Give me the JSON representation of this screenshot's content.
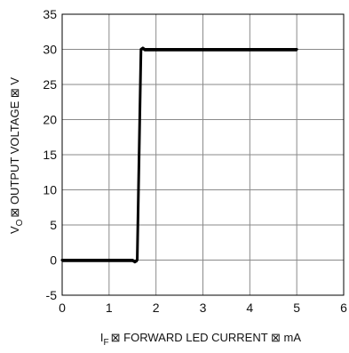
{
  "chart_data": {
    "type": "line",
    "title": "",
    "xlabel": {
      "symbol": "I",
      "subscript": "F",
      "text": "⊠ FORWARD LED CURRENT ⊠ mA"
    },
    "ylabel": {
      "symbol": "V",
      "subscript": "O",
      "text": "⊠ OUTPUT VOLTAGE ⊠ V"
    },
    "xlim": [
      0,
      6
    ],
    "ylim": [
      -5,
      35
    ],
    "xticks": [
      0,
      1,
      2,
      3,
      4,
      5,
      6
    ],
    "yticks": [
      -5,
      0,
      5,
      10,
      15,
      20,
      25,
      30,
      35
    ],
    "xtick_labels": [
      "0",
      "1",
      "2",
      "3",
      "4",
      "5",
      "6"
    ],
    "ytick_labels": [
      "-5",
      "0",
      "5",
      "10",
      "15",
      "20",
      "25",
      "30",
      "35"
    ],
    "grid": true,
    "legend": "none",
    "series": [
      {
        "color": "#000000",
        "style": "solid",
        "points": [
          {
            "x": 0.0,
            "y": 0.0
          },
          {
            "x": 1.5,
            "y": 0.0
          },
          {
            "x": 1.55,
            "y": -0.2
          },
          {
            "x": 1.6,
            "y": 0.0
          },
          {
            "x": 1.68,
            "y": 30.0
          },
          {
            "x": 1.72,
            "y": 30.2
          },
          {
            "x": 1.76,
            "y": 30.0
          },
          {
            "x": 5.0,
            "y": 30.0
          }
        ]
      }
    ]
  }
}
